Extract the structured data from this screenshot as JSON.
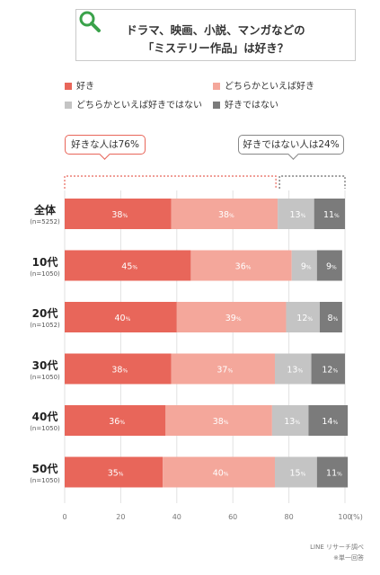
{
  "title": {
    "line1": "ドラマ、映画、小説、マンガなどの",
    "line2": "「ミステリー作品」は好き？"
  },
  "icon": "search-icon",
  "legend": [
    {
      "label": "好き",
      "color": "#e8665a"
    },
    {
      "label": "どちらかといえば好き",
      "color": "#f4a79b"
    },
    {
      "label": "どちらかといえば好きではない",
      "color": "#c4c4c4"
    },
    {
      "label": "好きではない",
      "color": "#7b7b7b"
    }
  ],
  "callouts": {
    "positive": "好きな人は76%",
    "negative": "好きではない人は24%"
  },
  "axis_unit": "(%)",
  "source": {
    "line1": "LINE リサーチ調べ",
    "line2": "※単一回答"
  },
  "chart_data": {
    "type": "bar",
    "orientation": "horizontal",
    "stacked": true,
    "categories": [
      "全体",
      "10代",
      "20代",
      "30代",
      "40代",
      "50代"
    ],
    "sample_sizes": [
      "(n=5252)",
      "(n=1050)",
      "(n=1052)",
      "(n=1050)",
      "(n=1050)",
      "(n=1050)"
    ],
    "series": [
      {
        "name": "好き",
        "values": [
          38,
          45,
          40,
          38,
          36,
          35
        ]
      },
      {
        "name": "どちらかといえば好き",
        "values": [
          38,
          36,
          39,
          37,
          38,
          40
        ]
      },
      {
        "name": "どちらかといえば好きではない",
        "values": [
          13,
          9,
          12,
          13,
          13,
          15
        ]
      },
      {
        "name": "好きではない",
        "values": [
          11,
          9,
          8,
          12,
          14,
          11
        ]
      }
    ],
    "value_suffix": "%",
    "xlim": [
      0,
      100
    ],
    "xticks": [
      0,
      20,
      40,
      60,
      80,
      100
    ],
    "grid": true,
    "legend_position": "top"
  }
}
